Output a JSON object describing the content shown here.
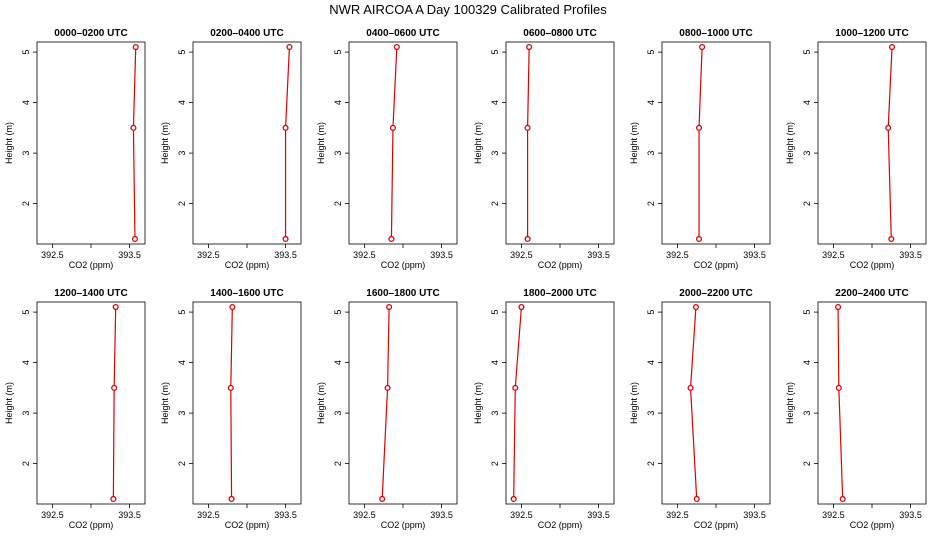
{
  "title": "NWR AIRCOA A  Day 100329  Calibrated Profiles",
  "colors": {
    "line": "#dd0000",
    "marker": "#dd0000",
    "frame": "#000000"
  },
  "chart_data": [
    {
      "type": "line",
      "title": "0000–0200 UTC",
      "xlabel": "CO2 (ppm)",
      "ylabel": "Height (m)",
      "xlim": [
        392.3,
        393.7
      ],
      "ylim": [
        1.2,
        5.2
      ],
      "xticks": [
        392.5,
        393.0,
        393.5
      ],
      "xticklabels": [
        "392.5",
        "",
        "393.5"
      ],
      "yticks": [
        2,
        3,
        4,
        5
      ],
      "x": [
        393.57,
        393.55,
        393.58
      ],
      "y": [
        1.3,
        3.5,
        5.1
      ]
    },
    {
      "type": "line",
      "title": "0200–0400 UTC",
      "xlabel": "CO2 (ppm)",
      "ylabel": "Height (m)",
      "xlim": [
        392.3,
        393.7
      ],
      "ylim": [
        1.2,
        5.2
      ],
      "xticks": [
        392.5,
        393.0,
        393.5
      ],
      "xticklabels": [
        "392.5",
        "",
        "393.5"
      ],
      "yticks": [
        2,
        3,
        4,
        5
      ],
      "x": [
        393.5,
        393.5,
        393.55
      ],
      "y": [
        1.3,
        3.5,
        5.1
      ]
    },
    {
      "type": "line",
      "title": "0400–0600 UTC",
      "xlabel": "CO2 (ppm)",
      "ylabel": "Height (m)",
      "xlim": [
        392.3,
        393.7
      ],
      "ylim": [
        1.2,
        5.2
      ],
      "xticks": [
        392.5,
        393.0,
        393.5
      ],
      "xticklabels": [
        "392.5",
        "",
        "393.5"
      ],
      "yticks": [
        2,
        3,
        4,
        5
      ],
      "x": [
        392.85,
        392.87,
        392.92
      ],
      "y": [
        1.3,
        3.5,
        5.1
      ]
    },
    {
      "type": "line",
      "title": "0600–0800 UTC",
      "xlabel": "CO2 (ppm)",
      "ylabel": "Height (m)",
      "xlim": [
        392.3,
        393.7
      ],
      "ylim": [
        1.2,
        5.2
      ],
      "xticks": [
        392.5,
        393.0,
        393.5
      ],
      "xticklabels": [
        "392.5",
        "",
        "393.5"
      ],
      "yticks": [
        2,
        3,
        4,
        5
      ],
      "x": [
        392.58,
        392.58,
        392.6
      ],
      "y": [
        1.3,
        3.5,
        5.1
      ]
    },
    {
      "type": "line",
      "title": "0800–1000 UTC",
      "xlabel": "CO2 (ppm)",
      "ylabel": "Height (m)",
      "xlim": [
        392.3,
        393.7
      ],
      "ylim": [
        1.2,
        5.2
      ],
      "xticks": [
        392.5,
        393.0,
        393.5
      ],
      "xticklabels": [
        "392.5",
        "",
        "393.5"
      ],
      "yticks": [
        2,
        3,
        4,
        5
      ],
      "x": [
        392.78,
        392.78,
        392.82
      ],
      "y": [
        1.3,
        3.5,
        5.1
      ]
    },
    {
      "type": "line",
      "title": "1000–1200 UTC",
      "xlabel": "CO2 (ppm)",
      "ylabel": "Height (m)",
      "xlim": [
        392.3,
        393.7
      ],
      "ylim": [
        1.2,
        5.2
      ],
      "xticks": [
        392.5,
        393.0,
        393.5
      ],
      "xticklabels": [
        "392.5",
        "",
        "393.5"
      ],
      "yticks": [
        2,
        3,
        4,
        5
      ],
      "x": [
        393.25,
        393.21,
        393.26
      ],
      "y": [
        1.3,
        3.5,
        5.1
      ]
    },
    {
      "type": "line",
      "title": "1200–1400 UTC",
      "xlabel": "CO2 (ppm)",
      "ylabel": "Height (m)",
      "xlim": [
        392.3,
        393.7
      ],
      "ylim": [
        1.2,
        5.2
      ],
      "xticks": [
        392.5,
        393.0,
        393.5
      ],
      "xticklabels": [
        "392.5",
        "",
        "393.5"
      ],
      "yticks": [
        2,
        3,
        4,
        5
      ],
      "x": [
        393.29,
        393.3,
        393.32
      ],
      "y": [
        1.3,
        3.5,
        5.1
      ]
    },
    {
      "type": "line",
      "title": "1400–1600 UTC",
      "xlabel": "CO2 (ppm)",
      "ylabel": "Height (m)",
      "xlim": [
        392.3,
        393.7
      ],
      "ylim": [
        1.2,
        5.2
      ],
      "xticks": [
        392.5,
        393.0,
        393.5
      ],
      "xticklabels": [
        "392.5",
        "",
        "393.5"
      ],
      "yticks": [
        2,
        3,
        4,
        5
      ],
      "x": [
        392.8,
        392.79,
        392.81
      ],
      "y": [
        1.3,
        3.5,
        5.1
      ]
    },
    {
      "type": "line",
      "title": "1600–1800 UTC",
      "xlabel": "CO2 (ppm)",
      "ylabel": "Height (m)",
      "xlim": [
        392.3,
        393.7
      ],
      "ylim": [
        1.2,
        5.2
      ],
      "xticks": [
        392.5,
        393.0,
        393.5
      ],
      "xticklabels": [
        "392.5",
        "",
        "393.5"
      ],
      "yticks": [
        2,
        3,
        4,
        5
      ],
      "x": [
        392.73,
        392.8,
        392.82
      ],
      "y": [
        1.3,
        3.5,
        5.1
      ]
    },
    {
      "type": "line",
      "title": "1800–2000 UTC",
      "xlabel": "CO2 (ppm)",
      "ylabel": "Height (m)",
      "xlim": [
        392.3,
        393.7
      ],
      "ylim": [
        1.2,
        5.2
      ],
      "xticks": [
        392.5,
        393.0,
        393.5
      ],
      "xticklabels": [
        "392.5",
        "",
        "393.5"
      ],
      "yticks": [
        2,
        3,
        4,
        5
      ],
      "x": [
        392.4,
        392.42,
        392.5
      ],
      "y": [
        1.3,
        3.5,
        5.1
      ]
    },
    {
      "type": "line",
      "title": "2000–2200 UTC",
      "xlabel": "CO2 (ppm)",
      "ylabel": "Height (m)",
      "xlim": [
        392.3,
        393.7
      ],
      "ylim": [
        1.2,
        5.2
      ],
      "xticks": [
        392.5,
        393.0,
        393.5
      ],
      "xticklabels": [
        "392.5",
        "",
        "393.5"
      ],
      "yticks": [
        2,
        3,
        4,
        5
      ],
      "x": [
        392.75,
        392.67,
        392.74
      ],
      "y": [
        1.3,
        3.5,
        5.1
      ]
    },
    {
      "type": "line",
      "title": "2200–2400 UTC",
      "xlabel": "CO2 (ppm)",
      "ylabel": "Height (m)",
      "xlim": [
        392.3,
        393.7
      ],
      "ylim": [
        1.2,
        5.2
      ],
      "xticks": [
        392.5,
        393.0,
        393.5
      ],
      "xticklabels": [
        "392.5",
        "",
        "393.5"
      ],
      "yticks": [
        2,
        3,
        4,
        5
      ],
      "x": [
        392.62,
        392.57,
        392.56
      ],
      "y": [
        1.3,
        3.5,
        5.1
      ]
    }
  ]
}
